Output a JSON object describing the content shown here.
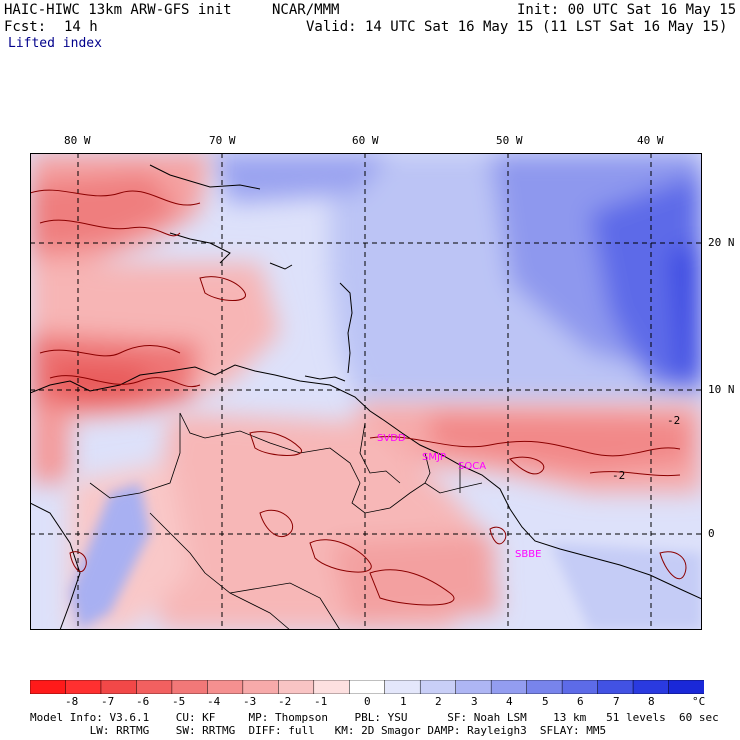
{
  "header": {
    "title": "HAIC-HIWC 13km ARW-GFS init",
    "org": "NCAR/MMM",
    "init": "Init: 00 UTC Sat 16 May 15",
    "fcst_label": "Fcst:",
    "fcst_value": "14 h",
    "valid": "Valid: 14 UTC Sat 16 May 15 (11 LST Sat 16 May 15)",
    "field": "Lifted index"
  },
  "map": {
    "lon_labels": [
      "80 W",
      "70 W",
      "60 W",
      "50 W",
      "40 W"
    ],
    "lat_labels": [
      "20 N",
      "10 N",
      "0"
    ],
    "contour_labels": [
      "-2",
      "-2"
    ],
    "stations": [
      {
        "name": "SVDD"
      },
      {
        "name": "SMJP"
      },
      {
        "name": "SOCA"
      },
      {
        "name": "SBBE"
      }
    ],
    "colors": {
      "strong_negative": "#f23838",
      "negative": "#f7a6a6",
      "neutral": "#ffffff",
      "positive": "#c5cdf7",
      "strong_positive": "#3f4ce8",
      "station_label": "#ff00ff",
      "contour": "#8b0000"
    }
  },
  "colorbar": {
    "labels": [
      "-8",
      "-7",
      "-6",
      "-5",
      "-4",
      "-3",
      "-2",
      "-1",
      "0",
      "1",
      "2",
      "3",
      "4",
      "5",
      "6",
      "7",
      "8"
    ],
    "unit": "°C",
    "colors": [
      "#ff1a1a",
      "#ff3030",
      "#f24848",
      "#f26060",
      "#f27878",
      "#f59090",
      "#f7aaaa",
      "#f9c4c4",
      "#fde0e0",
      "#ffffff",
      "#e4e7fb",
      "#c9cff7",
      "#aeb6f4",
      "#939df0",
      "#7884ec",
      "#5d6be8",
      "#4252e4",
      "#2a3ae0",
      "#1a28d8"
    ]
  },
  "footer": {
    "line1": "Model Info: V3.6.1    CU: KF     MP: Thompson    PBL: YSU      SF: Noah LSM    13 km   51 levels  60 sec",
    "line2": "         LW: RRTMG    SW: RRTMG  DIFF: full   KM: 2D Smagor DAMP: Rayleigh3  SFLAY: MM5"
  }
}
